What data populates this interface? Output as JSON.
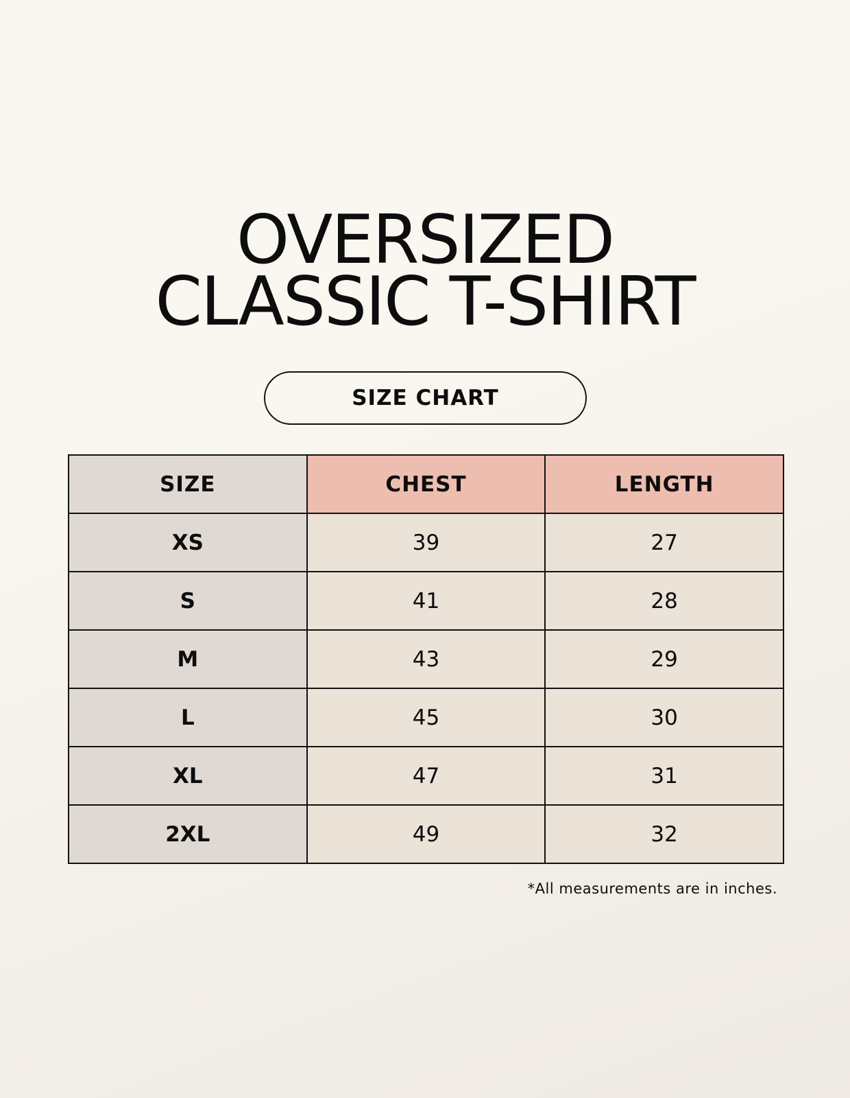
{
  "title_line1": "OVERSIZED",
  "title_line2": "CLASSIC T-SHIRT",
  "subtitle": "SIZE CHART",
  "table": {
    "headers": [
      "SIZE",
      "CHEST",
      "LENGTH"
    ],
    "rows": [
      [
        "XS",
        "39",
        "27"
      ],
      [
        "S",
        "41",
        "28"
      ],
      [
        "M",
        "43",
        "29"
      ],
      [
        "L",
        "45",
        "30"
      ],
      [
        "XL",
        "47",
        "31"
      ],
      [
        "2XL",
        "49",
        "32"
      ]
    ]
  },
  "note": "*All measurements are in inches.",
  "colors": {
    "size_column": "#e0d9d3",
    "header_accent": "#edbdaf",
    "cell": "#ebe2d8"
  }
}
